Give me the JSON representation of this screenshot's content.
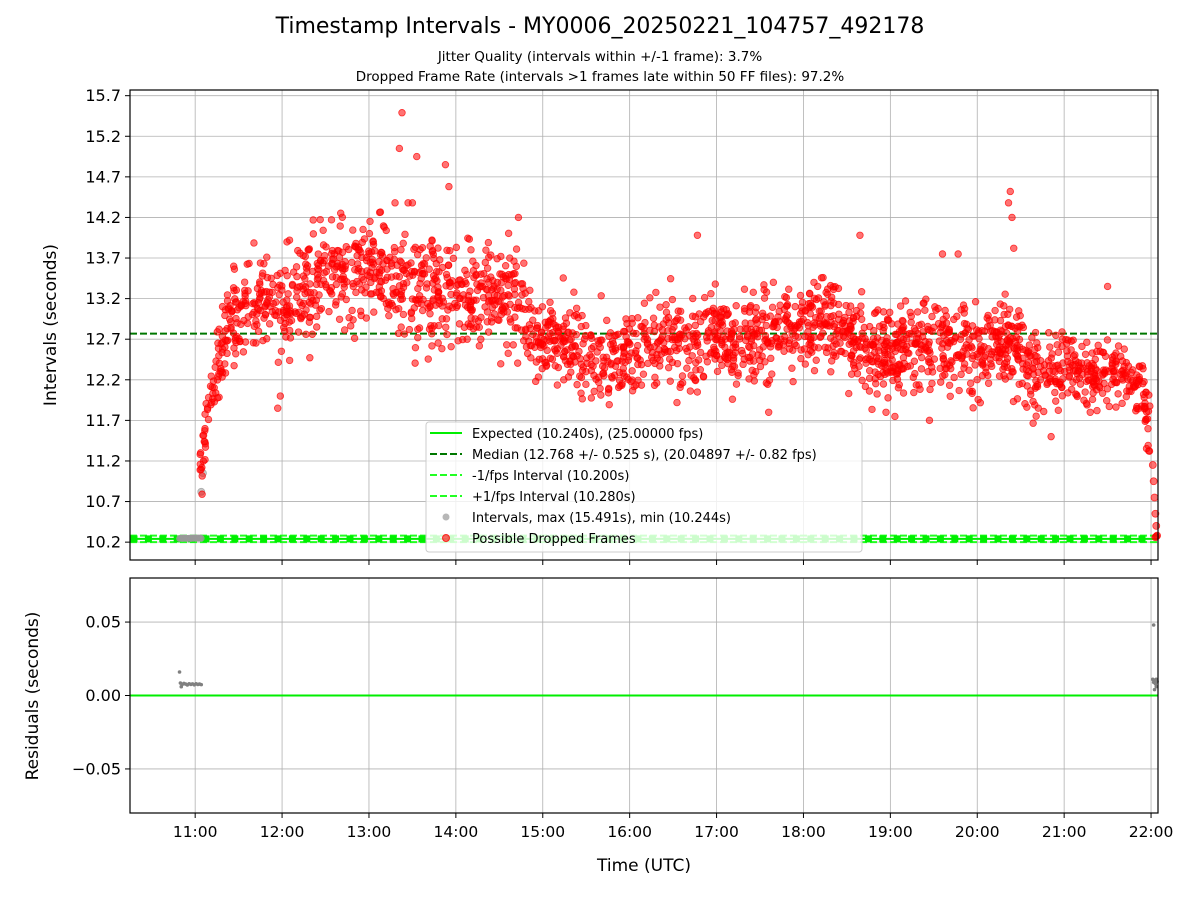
{
  "title": "Timestamp Intervals - MY0006_20250221_104757_492178",
  "subtitles": [
    "Jitter Quality (intervals within +/-1 frame): 3.7%",
    "Dropped Frame Rate (intervals >1 frames late within 50 FF files): 97.2%"
  ],
  "colors": {
    "expected": "#00ee00",
    "median": "#007700",
    "fps_band": "#22ff22",
    "intervals": "#999999",
    "dropped": "#ff0000",
    "grid": "#b0b0b0"
  },
  "chart_data": [
    {
      "type": "scatter",
      "panel": "intervals",
      "xlabel": "",
      "ylabel": "Intervals (seconds)",
      "x_unit": "hours UTC",
      "xlim": [
        10.25,
        22.08
      ],
      "ylim": [
        9.98,
        15.77
      ],
      "x_ticks": [
        11,
        12,
        13,
        14,
        15,
        16,
        17,
        18,
        19,
        20,
        21,
        22
      ],
      "x_tick_labels": [
        "11:00",
        "12:00",
        "13:00",
        "14:00",
        "15:00",
        "16:00",
        "17:00",
        "18:00",
        "19:00",
        "20:00",
        "21:00",
        "22:00"
      ],
      "y_ticks": [
        10.2,
        10.7,
        11.2,
        11.7,
        12.2,
        12.7,
        13.2,
        13.7,
        14.2,
        14.7,
        15.2,
        15.7
      ],
      "y_tick_labels": [
        "10.2",
        "10.7",
        "11.2",
        "11.7",
        "12.2",
        "12.7",
        "13.2",
        "13.7",
        "14.2",
        "14.7",
        "15.2",
        "15.7"
      ],
      "grid": true,
      "legend_position": "lower-center",
      "lines": [
        {
          "name": "Expected (10.240s), (25.00000 fps)",
          "y": 10.24,
          "style": "solid"
        },
        {
          "name": "Median (12.768 +/- 0.525 s), (20.04897 +/- 0.82 fps)",
          "y": 12.768,
          "style": "dashed"
        },
        {
          "name": "-1/fps Interval (10.200s)",
          "y": 10.2,
          "style": "dashed"
        },
        {
          "name": "+1/fps Interval (10.280s)",
          "y": 10.28,
          "style": "dashed"
        }
      ],
      "scatter_series": [
        {
          "name": "Intervals, max (15.491s), min (10.244s)",
          "max": 15.491,
          "min": 10.244
        },
        {
          "name": "Possible Dropped Frames"
        }
      ],
      "trend": {
        "x": [
          11.05,
          11.15,
          11.3,
          11.5,
          11.75,
          12.0,
          12.25,
          12.5,
          12.75,
          13.0,
          13.25,
          13.5,
          13.75,
          14.0,
          14.25,
          14.5,
          14.75,
          15.0,
          15.25,
          15.5,
          15.75,
          16.0,
          16.25,
          16.5,
          16.75,
          17.0,
          17.25,
          17.5,
          17.75,
          18.0,
          18.25,
          18.5,
          18.75,
          19.0,
          19.25,
          19.5,
          19.75,
          20.0,
          20.25,
          20.5,
          20.75,
          21.0,
          21.25,
          21.5,
          21.75,
          21.9,
          22.0,
          22.05
        ],
        "y": [
          11.0,
          11.8,
          12.6,
          13.05,
          13.2,
          13.05,
          13.3,
          13.5,
          13.55,
          13.6,
          13.45,
          13.4,
          13.25,
          13.3,
          13.2,
          13.3,
          13.1,
          12.7,
          12.6,
          12.55,
          12.45,
          12.55,
          12.6,
          12.6,
          12.65,
          12.75,
          12.6,
          12.7,
          12.85,
          12.85,
          12.95,
          12.75,
          12.6,
          12.6,
          12.55,
          12.65,
          12.6,
          12.5,
          12.7,
          12.5,
          12.2,
          12.35,
          12.3,
          12.3,
          12.2,
          12.1,
          11.5,
          10.6
        ]
      },
      "outliers": [
        {
          "x": 13.38,
          "y": 15.49
        },
        {
          "x": 13.35,
          "y": 15.05
        },
        {
          "x": 13.55,
          "y": 14.95
        },
        {
          "x": 13.88,
          "y": 14.85
        },
        {
          "x": 13.92,
          "y": 14.58
        },
        {
          "x": 13.3,
          "y": 14.38
        },
        {
          "x": 13.45,
          "y": 14.38
        },
        {
          "x": 13.5,
          "y": 14.38
        },
        {
          "x": 20.38,
          "y": 14.52
        },
        {
          "x": 20.36,
          "y": 14.38
        },
        {
          "x": 20.4,
          "y": 14.2
        },
        {
          "x": 20.42,
          "y": 13.82
        },
        {
          "x": 18.65,
          "y": 13.98
        },
        {
          "x": 16.78,
          "y": 13.98
        },
        {
          "x": 14.72,
          "y": 14.2
        },
        {
          "x": 11.95,
          "y": 11.85
        },
        {
          "x": 11.98,
          "y": 12.0
        },
        {
          "x": 19.45,
          "y": 11.7
        },
        {
          "x": 17.6,
          "y": 11.8
        },
        {
          "x": 18.95,
          "y": 11.8
        },
        {
          "x": 20.85,
          "y": 11.5
        },
        {
          "x": 21.3,
          "y": 11.8
        },
        {
          "x": 21.5,
          "y": 13.35
        },
        {
          "x": 19.6,
          "y": 13.75
        },
        {
          "x": 19.78,
          "y": 13.75
        }
      ],
      "gray_points": [
        {
          "x": 11.07,
          "y": 10.82
        },
        {
          "x": 11.09,
          "y": 11.05
        }
      ],
      "tail_points": [
        {
          "x": 22.02,
          "y": 11.15
        },
        {
          "x": 22.03,
          "y": 10.95
        },
        {
          "x": 22.04,
          "y": 10.75
        },
        {
          "x": 22.05,
          "y": 10.55
        },
        {
          "x": 22.06,
          "y": 10.4
        },
        {
          "x": 22.07,
          "y": 10.28
        },
        {
          "x": 22.06,
          "y": 10.27
        },
        {
          "x": 22.05,
          "y": 10.26
        }
      ],
      "cluster_near_expected": {
        "x_start": 10.82,
        "x_end": 11.07,
        "y": 10.248
      }
    },
    {
      "type": "scatter",
      "panel": "residuals",
      "xlabel": "Time (UTC)",
      "ylabel": "Residuals (seconds)",
      "xlim": [
        10.25,
        22.08
      ],
      "ylim": [
        -0.08,
        0.08
      ],
      "x_ticks": [
        11,
        12,
        13,
        14,
        15,
        16,
        17,
        18,
        19,
        20,
        21,
        22
      ],
      "x_tick_labels": [
        "11:00",
        "12:00",
        "13:00",
        "14:00",
        "15:00",
        "16:00",
        "17:00",
        "18:00",
        "19:00",
        "20:00",
        "21:00",
        "22:00"
      ],
      "y_ticks": [
        0.05,
        0.0,
        -0.05
      ],
      "y_tick_labels": [
        "0.05",
        "0.00",
        "−0.05"
      ],
      "grid": true,
      "zero_line": 0.0,
      "points": [
        {
          "x": 10.82,
          "y": 0.016
        },
        {
          "x": 10.83,
          "y": 0.0085
        },
        {
          "x": 10.85,
          "y": 0.0075
        },
        {
          "x": 10.87,
          "y": 0.0082
        },
        {
          "x": 10.89,
          "y": 0.0078
        },
        {
          "x": 10.91,
          "y": 0.0072
        },
        {
          "x": 10.93,
          "y": 0.008
        },
        {
          "x": 10.95,
          "y": 0.0076
        },
        {
          "x": 10.97,
          "y": 0.0079
        },
        {
          "x": 10.99,
          "y": 0.0073
        },
        {
          "x": 11.01,
          "y": 0.008
        },
        {
          "x": 11.03,
          "y": 0.0075
        },
        {
          "x": 11.05,
          "y": 0.0078
        },
        {
          "x": 11.07,
          "y": 0.0074
        },
        {
          "x": 10.84,
          "y": 0.006
        },
        {
          "x": 22.03,
          "y": 0.048
        },
        {
          "x": 22.02,
          "y": 0.011
        },
        {
          "x": 22.03,
          "y": 0.009
        },
        {
          "x": 22.04,
          "y": 0.01
        },
        {
          "x": 22.05,
          "y": 0.008
        },
        {
          "x": 22.06,
          "y": 0.006
        },
        {
          "x": 22.04,
          "y": 0.004
        },
        {
          "x": 22.07,
          "y": 0.0095
        },
        {
          "x": 22.06,
          "y": 0.011
        }
      ]
    }
  ]
}
